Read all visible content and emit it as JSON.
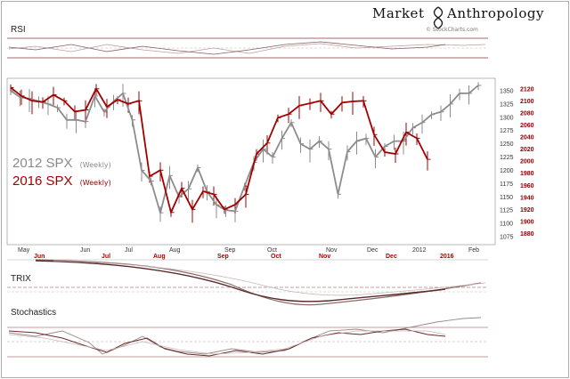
{
  "header": {
    "brand_part1": "Market",
    "brand_part2": "Anthropology",
    "credit": "© StockCharts.com"
  },
  "panels": {
    "rsi": "RSI",
    "trix": "TRIX",
    "stochastics": "Stochastics"
  },
  "colors": {
    "series_2012": "#8c8c8c",
    "series_2016": "#a10000",
    "frame": "#777777"
  },
  "chart_data": {
    "type": "line",
    "legend": [
      {
        "label": "2012 SPX",
        "note": "(Weekly)"
      },
      {
        "label": "2016  SPX",
        "note": "(Weekly)"
      }
    ],
    "legend_position": "left",
    "y_left_ticks": [
      1075,
      1100,
      1125,
      1150,
      1175,
      1200,
      1225,
      1250,
      1275,
      1300,
      1325,
      1350
    ],
    "y_left_range": [
      1065,
      1365
    ],
    "y_right_ticks": [
      1880,
      1900,
      1920,
      1940,
      1960,
      1980,
      2000,
      2020,
      2040,
      2060,
      2080,
      2100,
      2120
    ],
    "y_right_range": [
      1866,
      2130
    ],
    "x_labels_top": [
      "May",
      "Jun",
      "Jul",
      "Aug",
      "Sep",
      "Oct",
      "Nov",
      "Dec",
      "2012",
      "Feb"
    ],
    "x_labels_bottom": [
      "Jun",
      "Jul",
      "Aug",
      "Sep",
      "Oct",
      "Nov",
      "Dec",
      "2016"
    ],
    "series": [
      {
        "name": "2012 SPX",
        "axis": "left",
        "color": "#8c8c8c",
        "values": [
          1350,
          1338,
          1335,
          1330,
          1325,
          1318,
          1295,
          1295,
          1292,
          1340,
          1310,
          1330,
          1345,
          1295,
          1200,
          1180,
          1120,
          1190,
          1150,
          1165,
          1205,
          1160,
          1135,
          1125,
          1123,
          1170,
          1215,
          1240,
          1225,
          1260,
          1290,
          1250,
          1240,
          1255,
          1240,
          1155,
          1235,
          1255,
          1260,
          1225,
          1245,
          1255,
          1255,
          1280,
          1290,
          1305,
          1310,
          1325,
          1345,
          1345,
          1360
        ]
      },
      {
        "name": "2016 SPX",
        "axis": "right",
        "color": "#a10000",
        "values": [
          2122,
          2108,
          2100,
          2098,
          2110,
          2100,
          2082,
          2085,
          2120,
          2090,
          2102,
          2095,
          2100,
          1975,
          1985,
          1915,
          1955,
          1920,
          1950,
          1945,
          1920,
          1928,
          1945,
          2012,
          2030,
          2072,
          2078,
          2092,
          2096,
          2100,
          2078,
          2097,
          2099,
          2100,
          2044,
          2015,
          2012,
          2048,
          2038,
          2003
        ]
      }
    ]
  }
}
